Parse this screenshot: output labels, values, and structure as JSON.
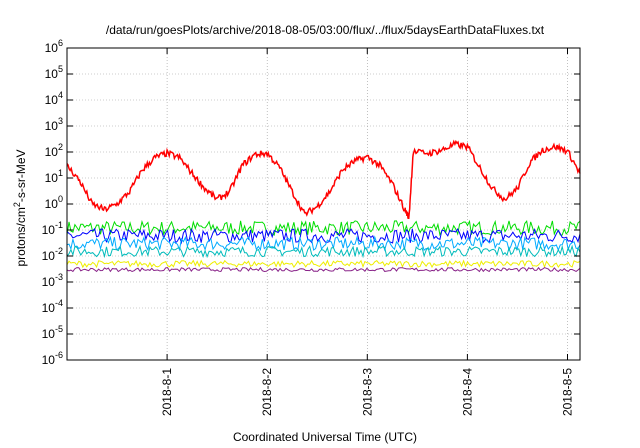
{
  "chart_data": {
    "type": "line",
    "title": "/data/run/goesPlots/archive/2018-08-05/03:00/flux/../flux/5daysEarthDataFluxes.txt",
    "xlabel": "Coordinated Universal Time (UTC)",
    "ylabel": {
      "base": "protons/cm",
      "sup": "2",
      "rest": "-s-sr-MeV"
    },
    "yscale": "log",
    "ylim": [
      1e-06,
      1000000.0
    ],
    "xlim": [
      "2018-07-31T00:00",
      "2018-08-05T03:00"
    ],
    "grid": true,
    "legend": "none",
    "x_ticks": [
      {
        "date": "2018-08-01",
        "label": "2018-8-1"
      },
      {
        "date": "2018-08-02",
        "label": "2018-8-2"
      },
      {
        "date": "2018-08-03",
        "label": "2018-8-3"
      },
      {
        "date": "2018-08-04",
        "label": "2018-8-4"
      },
      {
        "date": "2018-08-05",
        "label": "2018-8-5"
      }
    ],
    "y_ticks": [
      {
        "value": 1e-06,
        "mant": "10",
        "exp": "-6"
      },
      {
        "value": 1e-05,
        "mant": "10",
        "exp": "-5"
      },
      {
        "value": 0.0001,
        "mant": "10",
        "exp": "-4"
      },
      {
        "value": 0.001,
        "mant": "10",
        "exp": "-3"
      },
      {
        "value": 0.01,
        "mant": "10",
        "exp": "-2"
      },
      {
        "value": 0.1,
        "mant": "10",
        "exp": "-1"
      },
      {
        "value": 1,
        "mant": "10",
        "exp": "0"
      },
      {
        "value": 10.0,
        "mant": "10",
        "exp": "1"
      },
      {
        "value": 100.0,
        "mant": "10",
        "exp": "2"
      },
      {
        "value": 1000.0,
        "mant": "10",
        "exp": "3"
      },
      {
        "value": 10000.0,
        "mant": "10",
        "exp": "4"
      },
      {
        "value": 100000.0,
        "mant": "10",
        "exp": "5"
      },
      {
        "value": 1000000.0,
        "mant": "10",
        "exp": "6"
      }
    ],
    "series": [
      {
        "color": "#ff0000",
        "x": [
          "2018-07-31T00:00",
          "2018-07-31T03:00",
          "2018-07-31T06:00",
          "2018-07-31T09:00",
          "2018-07-31T12:00",
          "2018-07-31T15:00",
          "2018-07-31T18:00",
          "2018-07-31T21:00",
          "2018-08-01T00:00",
          "2018-08-01T03:00",
          "2018-08-01T06:00",
          "2018-08-01T09:00",
          "2018-08-01T12:00",
          "2018-08-01T15:00",
          "2018-08-01T18:00",
          "2018-08-01T21:00",
          "2018-08-02T00:00",
          "2018-08-02T03:00",
          "2018-08-02T06:00",
          "2018-08-02T09:00",
          "2018-08-02T12:00",
          "2018-08-02T15:00",
          "2018-08-02T18:00",
          "2018-08-02T21:00",
          "2018-08-03T00:00",
          "2018-08-03T03:00",
          "2018-08-03T06:00",
          "2018-08-03T09:00",
          "2018-08-03T10:00",
          "2018-08-03T11:00",
          "2018-08-03T15:00",
          "2018-08-03T18:00",
          "2018-08-03T21:00",
          "2018-08-04T00:00",
          "2018-08-04T03:00",
          "2018-08-04T06:00",
          "2018-08-04T09:00",
          "2018-08-04T12:00",
          "2018-08-04T15:00",
          "2018-08-04T18:00",
          "2018-08-04T21:00",
          "2018-08-05T00:00",
          "2018-08-05T03:00"
        ],
        "y": [
          30,
          8,
          1.0,
          0.6,
          1.0,
          3,
          20,
          60,
          90,
          60,
          15,
          4,
          1.5,
          3,
          30,
          80,
          90,
          25,
          3,
          0.4,
          0.8,
          3,
          20,
          45,
          65,
          30,
          6,
          0.6,
          0.3,
          100,
          90,
          120,
          200,
          160,
          25,
          4,
          1.5,
          4,
          40,
          120,
          160,
          110,
          15
        ]
      },
      {
        "color": "#00dd00",
        "level": 0.12
      },
      {
        "color": "#0000ff",
        "level": 0.06
      },
      {
        "color": "#00aaff",
        "level": 0.03
      },
      {
        "color": "#00bbbb",
        "level": 0.015
      },
      {
        "color": "#eeee00",
        "level": 0.005
      },
      {
        "color": "#882288",
        "level": 0.003
      }
    ]
  }
}
